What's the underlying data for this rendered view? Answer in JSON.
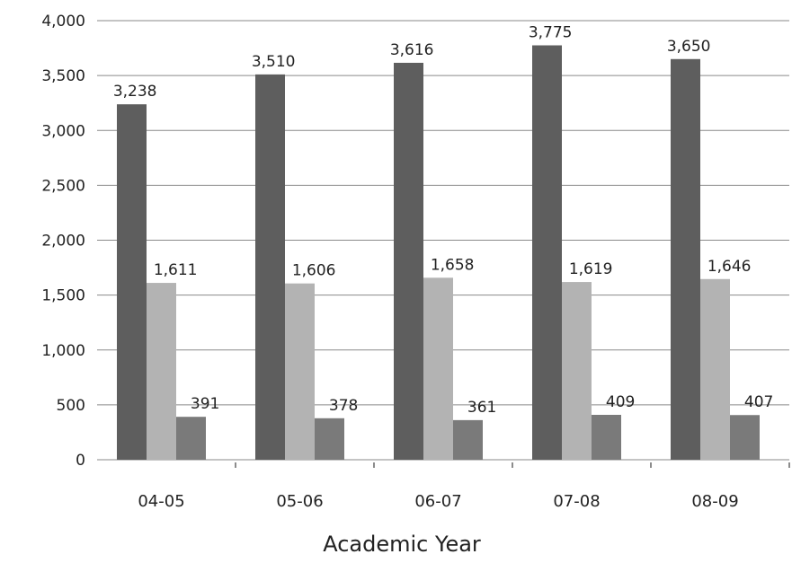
{
  "chart_data": {
    "type": "bar",
    "title": "",
    "xlabel": "Academic Year",
    "ylabel": "",
    "ylim": [
      0,
      4000
    ],
    "yticks": [
      0,
      500,
      1000,
      1500,
      2000,
      2500,
      3000,
      3500,
      4000
    ],
    "ytick_labels": [
      "0",
      "500",
      "1,000",
      "1,500",
      "2,000",
      "2,500",
      "3,000",
      "3,500",
      "4,000"
    ],
    "grid": true,
    "legend": "none",
    "categories": [
      "04-05",
      "05-06",
      "06-07",
      "07-08",
      "08-09"
    ],
    "series": [
      {
        "color": "#5e5e5e",
        "values": [
          3238,
          3510,
          3616,
          3775,
          3650
        ],
        "labels": [
          "3,238",
          "3,510",
          "3,616",
          "3,775",
          "3,650"
        ]
      },
      {
        "color": "#b3b3b3",
        "values": [
          1611,
          1606,
          1658,
          1619,
          1646
        ],
        "labels": [
          "1,611",
          "1,606",
          "1,658",
          "1,619",
          "1,646"
        ]
      },
      {
        "color": "#7a7a7a",
        "values": [
          391,
          378,
          361,
          409,
          407
        ],
        "labels": [
          "391",
          "378",
          "361",
          "409",
          "407"
        ]
      }
    ]
  }
}
